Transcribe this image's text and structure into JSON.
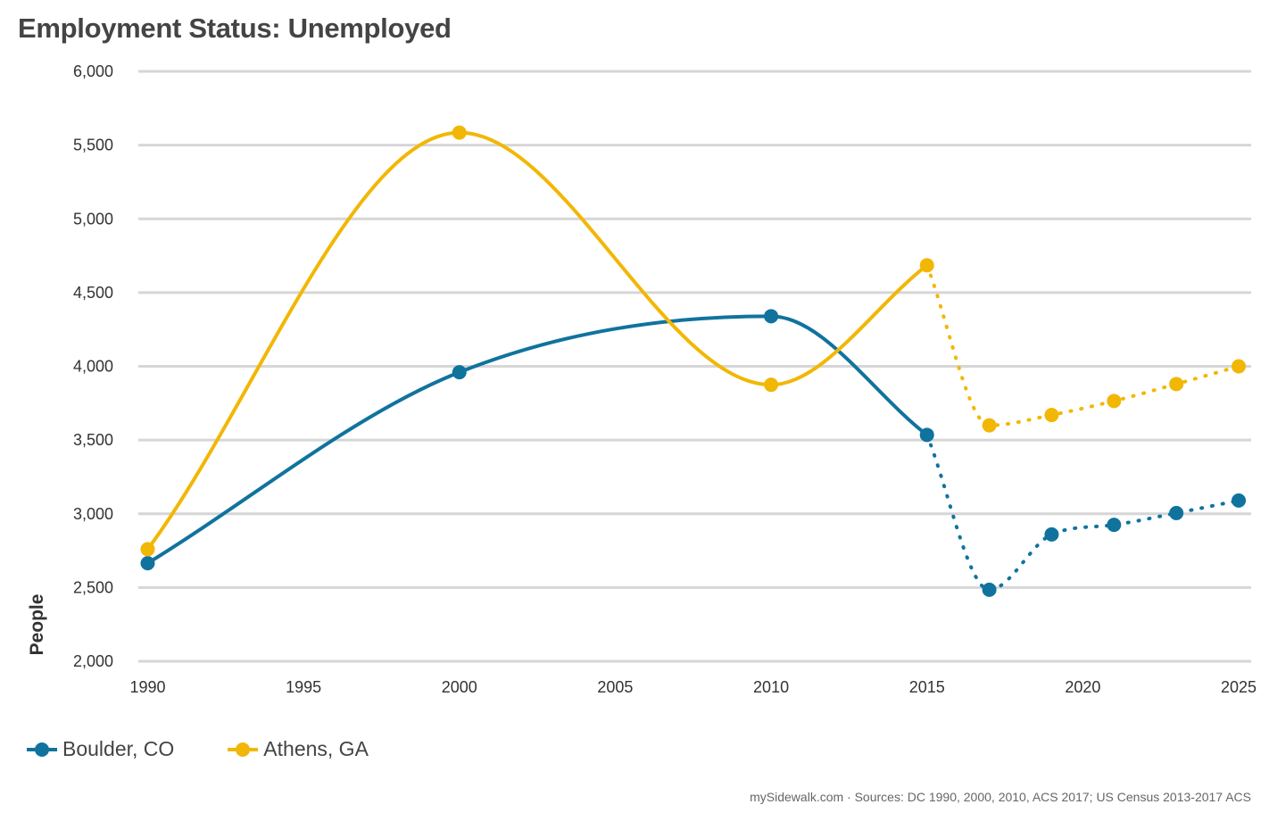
{
  "chart_data": {
    "type": "line",
    "title": "Employment Status: Unemployed",
    "xlabel": "",
    "ylabel": "People",
    "xlim": [
      1989.7,
      2025.4
    ],
    "ylim": [
      2000,
      6000
    ],
    "x_ticks": [
      1990,
      1995,
      2000,
      2005,
      2010,
      2015,
      2020,
      2025
    ],
    "y_ticks": [
      2000,
      2500,
      3000,
      3500,
      4000,
      4500,
      5000,
      5500,
      6000
    ],
    "y_tick_labels": [
      "2,000",
      "2,500",
      "3,000",
      "3,500",
      "4,000",
      "4,500",
      "5,000",
      "5,500",
      "6,000"
    ],
    "grid": true,
    "legend_position": "bottom-left",
    "series": [
      {
        "name": "Boulder, CO",
        "color": "#10739e",
        "actual": {
          "x": [
            1990,
            2000,
            2010,
            2015
          ],
          "y": [
            2665,
            3960,
            4340,
            3535
          ]
        },
        "projected": {
          "x": [
            2015,
            2017,
            2019,
            2021,
            2023,
            2025
          ],
          "y": [
            3535,
            2485,
            2860,
            2925,
            3005,
            3090
          ]
        }
      },
      {
        "name": "Athens, GA",
        "color": "#f2b705",
        "actual": {
          "x": [
            1990,
            2000,
            2010,
            2015
          ],
          "y": [
            2760,
            5585,
            3875,
            4685
          ]
        },
        "projected": {
          "x": [
            2015,
            2017,
            2019,
            2021,
            2023,
            2025
          ],
          "y": [
            4685,
            3600,
            3670,
            3765,
            3880,
            4000
          ]
        }
      }
    ],
    "source": "mySidewalk.com · Sources: DC 1990, 2000, 2010, ACS 2017; US Census 2013-2017 ACS"
  }
}
